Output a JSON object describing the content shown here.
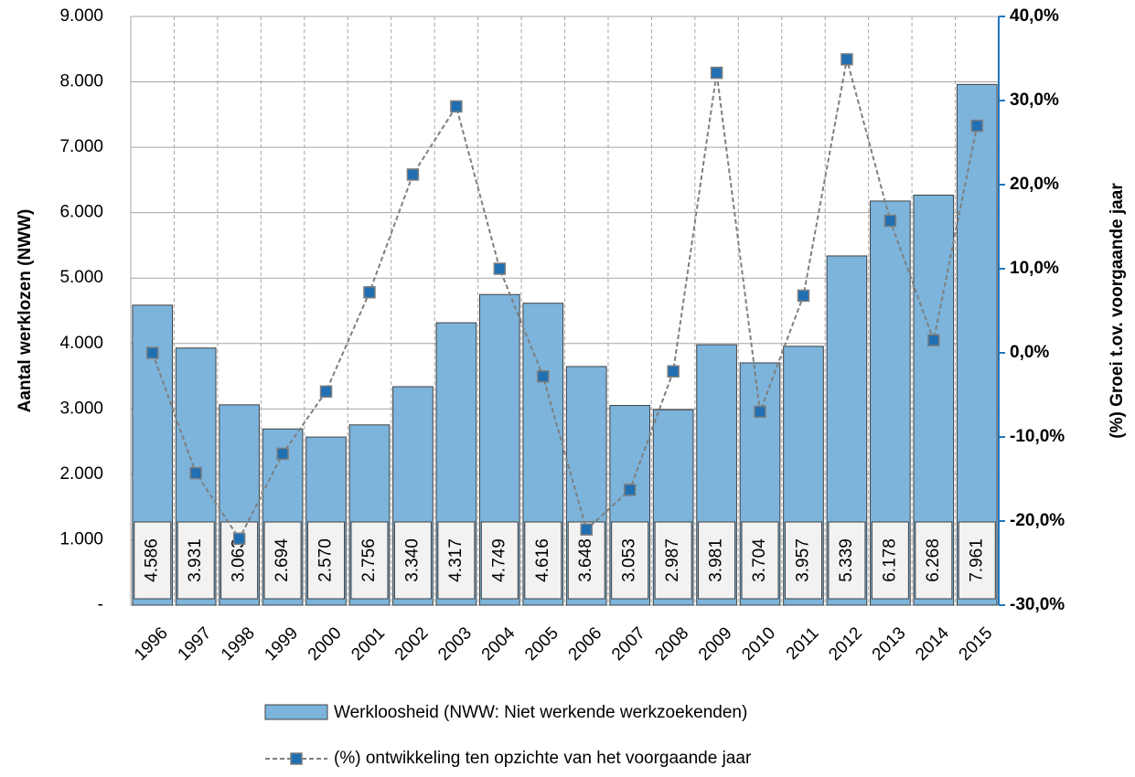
{
  "chart_data": {
    "type": "bar",
    "categories": [
      "1996",
      "1997",
      "1998",
      "1999",
      "2000",
      "2001",
      "2002",
      "2003",
      "2004",
      "2005",
      "2006",
      "2007",
      "2008",
      "2009",
      "2010",
      "2011",
      "2012",
      "2013",
      "2014",
      "2015"
    ],
    "y_label": "Aantal werklozen (NWW)",
    "y2_label": "(%) Groei t.ov. voorgaande jaar",
    "series": [
      {
        "name": "Werkloosheid (NWW: Niet werkende werkzoekenden)",
        "type": "bar",
        "color": "#7cb4dc",
        "values": [
          4586,
          3931,
          3063,
          2694,
          2570,
          2756,
          3340,
          4317,
          4749,
          4616,
          3648,
          3053,
          2987,
          3981,
          3704,
          3957,
          5339,
          6178,
          6268,
          7961
        ],
        "value_labels": [
          "4.586",
          "3.931",
          "3.063",
          "2.694",
          "2.570",
          "2.756",
          "3.340",
          "4.317",
          "4.749",
          "4.616",
          "3.648",
          "3.053",
          "2.987",
          "3.981",
          "3.704",
          "3.957",
          "5.339",
          "6.178",
          "6.268",
          "7.961"
        ]
      },
      {
        "name": "(%) ontwikkeling ten opzichte van het voorgaande jaar",
        "type": "line",
        "axis": "y2",
        "color": "#7f7f7f",
        "marker_color": "#1f6fb2",
        "values": [
          0,
          -14.3,
          -22.1,
          -12.0,
          -4.6,
          7.2,
          21.2,
          29.3,
          10.0,
          -2.8,
          -21.0,
          -16.3,
          -2.2,
          33.3,
          -7.0,
          6.8,
          34.9,
          15.7,
          1.5,
          27.0
        ]
      }
    ],
    "ylim": [
      0,
      9000
    ],
    "yticks": [
      {
        "value": 0,
        "label": "-"
      },
      {
        "value": 1000,
        "label": "1.000"
      },
      {
        "value": 2000,
        "label": "2.000"
      },
      {
        "value": 3000,
        "label": "3.000"
      },
      {
        "value": 4000,
        "label": "4.000"
      },
      {
        "value": 5000,
        "label": "5.000"
      },
      {
        "value": 6000,
        "label": "6.000"
      },
      {
        "value": 7000,
        "label": "7.000"
      },
      {
        "value": 8000,
        "label": "8.000"
      },
      {
        "value": 9000,
        "label": "9.000"
      }
    ],
    "y2lim": [
      -30,
      40
    ],
    "y2ticks": [
      {
        "value": -30,
        "label": "-30,0%"
      },
      {
        "value": -20,
        "label": "-20,0%"
      },
      {
        "value": -10,
        "label": "-10,0%"
      },
      {
        "value": 0,
        "label": "0,0%"
      },
      {
        "value": 10,
        "label": "10,0%"
      },
      {
        "value": 20,
        "label": "20,0%"
      },
      {
        "value": 30,
        "label": "30,0%"
      },
      {
        "value": 40,
        "label": "40,0%"
      }
    ],
    "grid": true,
    "legend": "bottom"
  }
}
